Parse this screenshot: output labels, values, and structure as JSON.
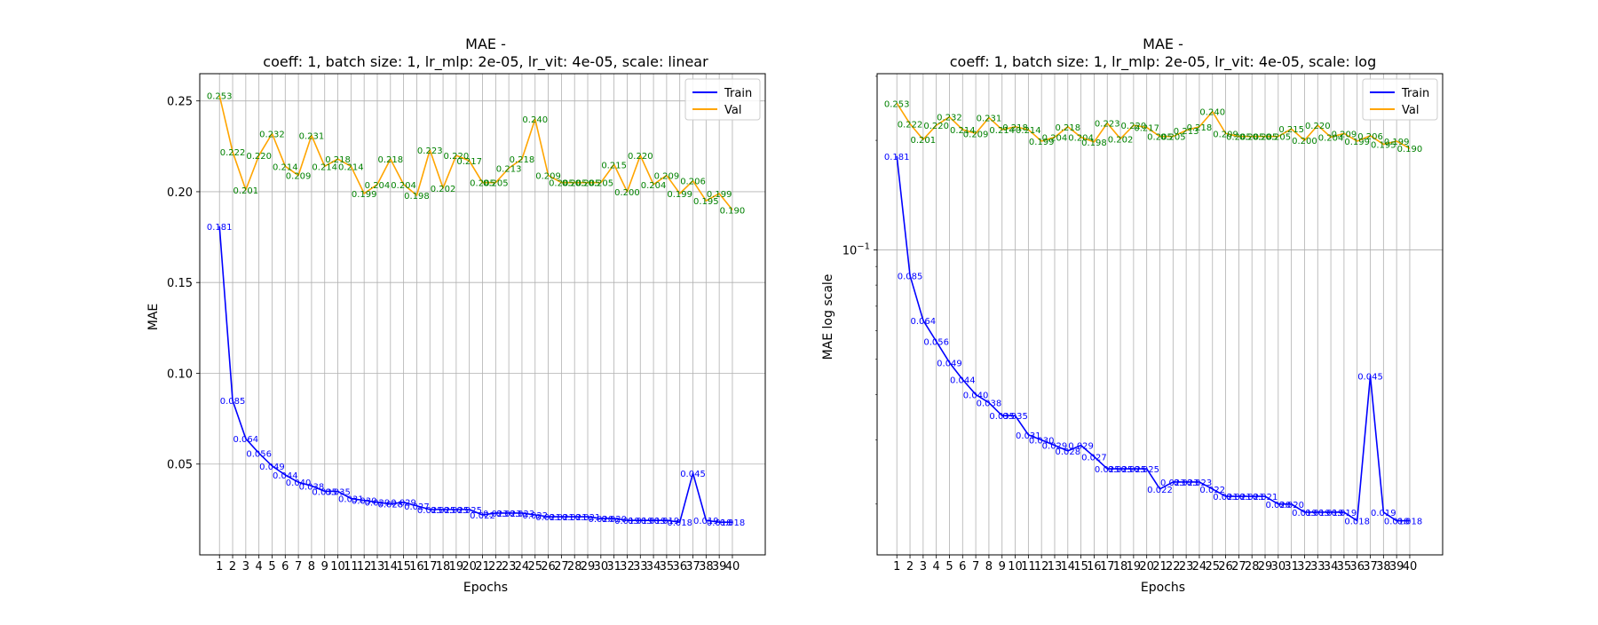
{
  "colors": {
    "train": "#0000ff",
    "val": "#ffa500",
    "val_label": "#008000",
    "grid": "#b0b0b0",
    "axes": "#000000"
  },
  "chart_data": [
    {
      "type": "line",
      "title_line1": "MAE -",
      "title_line2": "coeff: 1, batch size: 1, lr_mlp: 2e-05, lr_vit: 4e-05, scale: linear",
      "xlabel": "Epochs",
      "ylabel": "MAE",
      "scale": "linear",
      "ylim": [
        0.0,
        0.265
      ],
      "xlim": [
        -0.5,
        42.5
      ],
      "yticks": [
        0.05,
        0.1,
        0.15,
        0.2,
        0.25
      ],
      "ytick_labels": [
        "0.05",
        "0.10",
        "0.15",
        "0.20",
        "0.25"
      ],
      "legend": "top-right",
      "grid": true,
      "x": [
        1,
        2,
        3,
        4,
        5,
        6,
        7,
        8,
        9,
        10,
        11,
        12,
        13,
        14,
        15,
        16,
        17,
        18,
        19,
        20,
        21,
        22,
        23,
        24,
        25,
        26,
        27,
        28,
        29,
        30,
        31,
        32,
        33,
        34,
        35,
        36,
        37,
        38,
        39,
        40
      ],
      "series": [
        {
          "name": "Train",
          "color_key": "train",
          "values": [
            0.181,
            0.085,
            0.064,
            0.056,
            0.049,
            0.044,
            0.04,
            0.038,
            0.035,
            0.035,
            0.031,
            0.03,
            0.029,
            0.028,
            0.029,
            0.027,
            0.025,
            0.025,
            0.025,
            0.025,
            0.022,
            0.023,
            0.023,
            0.023,
            0.022,
            0.021,
            0.021,
            0.021,
            0.021,
            0.02,
            0.02,
            0.019,
            0.019,
            0.019,
            0.019,
            0.018,
            0.045,
            0.019,
            0.018,
            0.018
          ],
          "labels": [
            "0.181",
            "0.085",
            "0.064",
            "0.056",
            "0.049",
            "0.044",
            "0.040",
            "0.038",
            "0.035",
            "0.035",
            "0.031",
            "0.030",
            "0.029",
            "0.028",
            "0.029",
            "0.027",
            "0.025",
            "0.025",
            "0.025",
            "0.025",
            "0.022",
            "0.023",
            "0.023",
            "0.023",
            "0.022",
            "0.021",
            "0.021",
            "0.021",
            "0.021",
            "0.020",
            "0.020",
            "0.019",
            "0.019",
            "0.019",
            "0.019",
            "0.018",
            "0.045",
            "0.019",
            "0.018",
            "0.018"
          ]
        },
        {
          "name": "Val",
          "color_key": "val",
          "values": [
            0.253,
            0.222,
            0.201,
            0.22,
            0.232,
            0.214,
            0.209,
            0.231,
            0.214,
            0.218,
            0.214,
            0.199,
            0.204,
            0.218,
            0.204,
            0.198,
            0.223,
            0.202,
            0.22,
            0.217,
            0.205,
            0.205,
            0.213,
            0.218,
            0.24,
            0.209,
            0.205,
            0.205,
            0.205,
            0.205,
            0.215,
            0.2,
            0.22,
            0.204,
            0.209,
            0.199,
            0.206,
            0.195,
            0.199,
            0.19
          ],
          "labels": [
            "0.253",
            "0.222",
            "0.201",
            "0.220",
            "0.232",
            "0.214",
            "0.209",
            "0.231",
            "0.214",
            "0.218",
            "0.214",
            "0.199",
            "0.204",
            "0.218",
            "0.204",
            "0.198",
            "0.223",
            "0.202",
            "0.220",
            "0.217",
            "0.205",
            "0.205",
            "0.213",
            "0.218",
            "0.240",
            "0.209",
            "0.205",
            "0.205",
            "0.205",
            "0.205",
            "0.215",
            "0.200",
            "0.220",
            "0.204",
            "0.209",
            "0.199",
            "0.206",
            "0.195",
            "0.199",
            "0.190"
          ]
        }
      ]
    },
    {
      "type": "line",
      "title_line1": "MAE -",
      "title_line2": "coeff: 1, batch size: 1, lr_mlp: 2e-05, lr_vit: 4e-05, scale: log",
      "xlabel": "Epochs",
      "ylabel": "MAE log scale",
      "scale": "log",
      "ylim": [
        0.0145,
        0.305
      ],
      "xlim": [
        -0.5,
        42.5
      ],
      "yticks": [
        0.1
      ],
      "ytick_labels": [
        "10"
      ],
      "ytick_exponents": [
        "−1"
      ],
      "legend": "top-right",
      "grid": true,
      "x": [
        1,
        2,
        3,
        4,
        5,
        6,
        7,
        8,
        9,
        10,
        11,
        12,
        13,
        14,
        15,
        16,
        17,
        18,
        19,
        20,
        21,
        22,
        23,
        24,
        25,
        26,
        27,
        28,
        29,
        30,
        31,
        32,
        33,
        34,
        35,
        36,
        37,
        38,
        39,
        40
      ],
      "series": [
        {
          "name": "Train",
          "color_key": "train",
          "values": [
            0.181,
            0.085,
            0.064,
            0.056,
            0.049,
            0.044,
            0.04,
            0.038,
            0.035,
            0.035,
            0.031,
            0.03,
            0.029,
            0.028,
            0.029,
            0.027,
            0.025,
            0.025,
            0.025,
            0.025,
            0.022,
            0.023,
            0.023,
            0.023,
            0.022,
            0.021,
            0.021,
            0.021,
            0.021,
            0.02,
            0.02,
            0.019,
            0.019,
            0.019,
            0.019,
            0.018,
            0.045,
            0.019,
            0.018,
            0.018
          ],
          "labels": [
            "0.181",
            "0.085",
            "0.064",
            "0.056",
            "0.049",
            "0.044",
            "0.040",
            "0.038",
            "0.035",
            "0.035",
            "0.031",
            "0.030",
            "0.029",
            "0.028",
            "0.029",
            "0.027",
            "0.025",
            "0.025",
            "0.025",
            "0.025",
            "0.022",
            "0.023",
            "0.023",
            "0.023",
            "0.022",
            "0.021",
            "0.021",
            "0.021",
            "0.021",
            "0.020",
            "0.020",
            "0.019",
            "0.019",
            "0.019",
            "0.019",
            "0.018",
            "0.045",
            "0.019",
            "0.018",
            "0.018"
          ]
        },
        {
          "name": "Val",
          "color_key": "val",
          "values": [
            0.253,
            0.222,
            0.201,
            0.22,
            0.232,
            0.214,
            0.209,
            0.231,
            0.214,
            0.218,
            0.214,
            0.199,
            0.204,
            0.218,
            0.204,
            0.198,
            0.223,
            0.202,
            0.22,
            0.217,
            0.205,
            0.205,
            0.213,
            0.218,
            0.24,
            0.209,
            0.205,
            0.205,
            0.205,
            0.205,
            0.215,
            0.2,
            0.22,
            0.204,
            0.209,
            0.199,
            0.206,
            0.195,
            0.199,
            0.19
          ],
          "labels": [
            "0.253",
            "0.222",
            "0.201",
            "0.220",
            "0.232",
            "0.214",
            "0.209",
            "0.231",
            "0.214",
            "0.218",
            "0.214",
            "0.199",
            "0.204",
            "0.218",
            "0.204",
            "0.198",
            "0.223",
            "0.202",
            "0.220",
            "0.217",
            "0.205",
            "0.205",
            "0.213",
            "0.218",
            "0.240",
            "0.209",
            "0.205",
            "0.205",
            "0.205",
            "0.205",
            "0.215",
            "0.200",
            "0.220",
            "0.204",
            "0.209",
            "0.199",
            "0.206",
            "0.195",
            "0.199",
            "0.190"
          ]
        }
      ]
    }
  ]
}
